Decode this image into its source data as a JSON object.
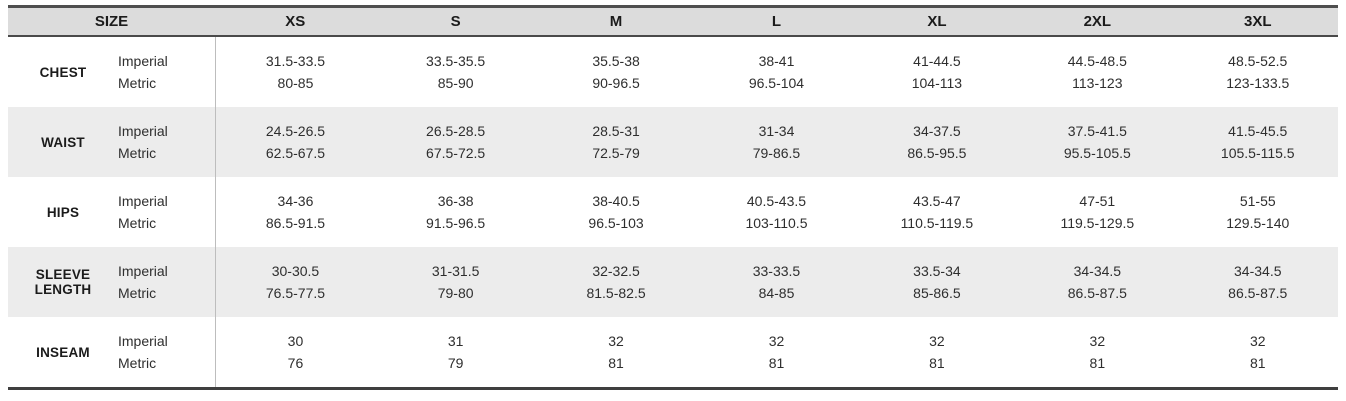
{
  "table": {
    "header": {
      "size_label": "SIZE",
      "size_columns": [
        "XS",
        "S",
        "M",
        "L",
        "XL",
        "2XL",
        "3XL"
      ]
    },
    "unit_rows": {
      "imperial": "Imperial",
      "metric": "Metric"
    },
    "rows": [
      {
        "label": "CHEST",
        "imperial": [
          "31.5-33.5",
          "33.5-35.5",
          "35.5-38",
          "38-41",
          "41-44.5",
          "44.5-48.5",
          "48.5-52.5"
        ],
        "metric": [
          "80-85",
          "85-90",
          "90-96.5",
          "96.5-104",
          "104-113",
          "113-123",
          "123-133.5"
        ]
      },
      {
        "label": "WAIST",
        "imperial": [
          "24.5-26.5",
          "26.5-28.5",
          "28.5-31",
          "31-34",
          "34-37.5",
          "37.5-41.5",
          "41.5-45.5"
        ],
        "metric": [
          "62.5-67.5",
          "67.5-72.5",
          "72.5-79",
          "79-86.5",
          "86.5-95.5",
          "95.5-105.5",
          "105.5-115.5"
        ]
      },
      {
        "label": "HIPS",
        "imperial": [
          "34-36",
          "36-38",
          "38-40.5",
          "40.5-43.5",
          "43.5-47",
          "47-51",
          "51-55"
        ],
        "metric": [
          "86.5-91.5",
          "91.5-96.5",
          "96.5-103",
          "103-110.5",
          "110.5-119.5",
          "119.5-129.5",
          "129.5-140"
        ]
      },
      {
        "label": "SLEEVE LENGTH",
        "imperial": [
          "30-30.5",
          "31-31.5",
          "32-32.5",
          "33-33.5",
          "33.5-34",
          "34-34.5",
          "34-34.5"
        ],
        "metric": [
          "76.5-77.5",
          "79-80",
          "81.5-82.5",
          "84-85",
          "85-86.5",
          "86.5-87.5",
          "86.5-87.5"
        ]
      },
      {
        "label": "INSEAM",
        "imperial": [
          "30",
          "31",
          "32",
          "32",
          "32",
          "32",
          "32"
        ],
        "metric": [
          "76",
          "79",
          "81",
          "81",
          "81",
          "81",
          "81"
        ]
      }
    ]
  },
  "colors": {
    "header_bg": "#dcdcdc",
    "stripe_bg": "#ececec",
    "border_dark": "#454545",
    "divider": "#bdbdbd"
  }
}
